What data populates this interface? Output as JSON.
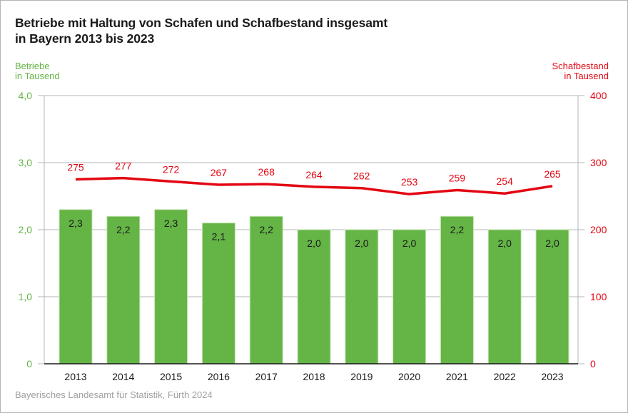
{
  "chart_data": {
    "type": "bar",
    "title": "Betriebe mit Haltung von Schafen und Schafbestand insgesamt in Bayern 2013 bis 2023",
    "title_lines": [
      "Betriebe mit Haltung von Schafen und Schafbestand insgesamt",
      "in Bayern 2013 bis 2023"
    ],
    "categories": [
      "2013",
      "2014",
      "2015",
      "2016",
      "2017",
      "2018",
      "2019",
      "2020",
      "2021",
      "2022",
      "2023"
    ],
    "series": [
      {
        "name": "Betriebe",
        "type": "bar",
        "axis": "left",
        "color": "#64b446",
        "values": [
          2.3,
          2.2,
          2.3,
          2.1,
          2.2,
          2.0,
          2.0,
          2.0,
          2.2,
          2.0,
          2.0
        ],
        "labels": [
          "2,3",
          "2,2",
          "2,3",
          "2,1",
          "2,2",
          "2,0",
          "2,0",
          "2,0",
          "2,2",
          "2,0",
          "2,0"
        ]
      },
      {
        "name": "Schafbestand",
        "type": "line",
        "axis": "right",
        "color": "#e30613",
        "values": [
          275,
          277,
          272,
          267,
          268,
          264,
          262,
          253,
          259,
          254,
          265
        ],
        "labels": [
          "275",
          "277",
          "272",
          "267",
          "268",
          "264",
          "262",
          "253",
          "259",
          "254",
          "265"
        ]
      }
    ],
    "left_axis": {
      "label_lines": [
        "Betriebe",
        "in Tausend"
      ],
      "ylim": [
        0,
        4
      ],
      "ticks": [
        0,
        1,
        2,
        3,
        4
      ],
      "tick_labels": [
        "0",
        "1,0",
        "2,0",
        "3,0",
        "4,0"
      ],
      "color": "#64b446"
    },
    "right_axis": {
      "label_lines": [
        "Schafbestand",
        "in Tausend"
      ],
      "ylim": [
        0,
        400
      ],
      "ticks": [
        0,
        100,
        200,
        300,
        400
      ],
      "tick_labels": [
        "0",
        "100",
        "200",
        "300",
        "400"
      ],
      "color": "#e30613"
    },
    "grid": true,
    "legend": "none"
  },
  "source": "Bayerisches Landesamt für Statistik, Fürth 2024"
}
